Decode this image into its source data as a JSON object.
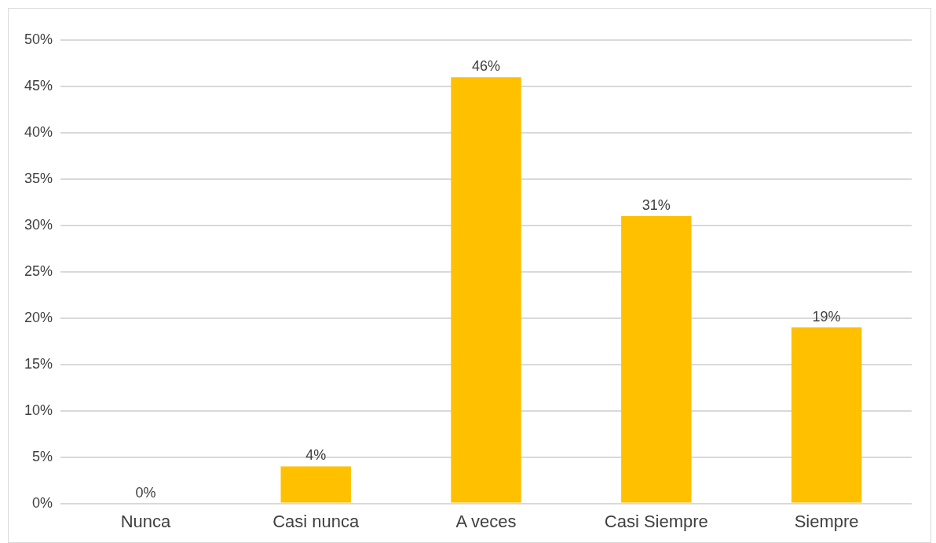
{
  "chart_data": {
    "type": "bar",
    "categories": [
      "Nunca",
      "Casi nunca",
      "A veces",
      "Casi Siempre",
      "Siempre"
    ],
    "values": [
      0,
      4,
      46,
      31,
      19
    ],
    "value_labels": [
      "0%",
      "4%",
      "46%",
      "31%",
      "19%"
    ],
    "color": "#ffc000",
    "ylim": [
      0,
      50
    ],
    "yticks": [
      {
        "value": 0,
        "label": "0%"
      },
      {
        "value": 5,
        "label": "5%"
      },
      {
        "value": 10,
        "label": "10%"
      },
      {
        "value": 15,
        "label": "15%"
      },
      {
        "value": 20,
        "label": "20%"
      },
      {
        "value": 25,
        "label": "25%"
      },
      {
        "value": 30,
        "label": "30%"
      },
      {
        "value": 35,
        "label": "35%"
      },
      {
        "value": 40,
        "label": "40%"
      },
      {
        "value": 45,
        "label": "45%"
      },
      {
        "value": 50,
        "label": "50%"
      }
    ],
    "grid": "y",
    "legend": false
  }
}
